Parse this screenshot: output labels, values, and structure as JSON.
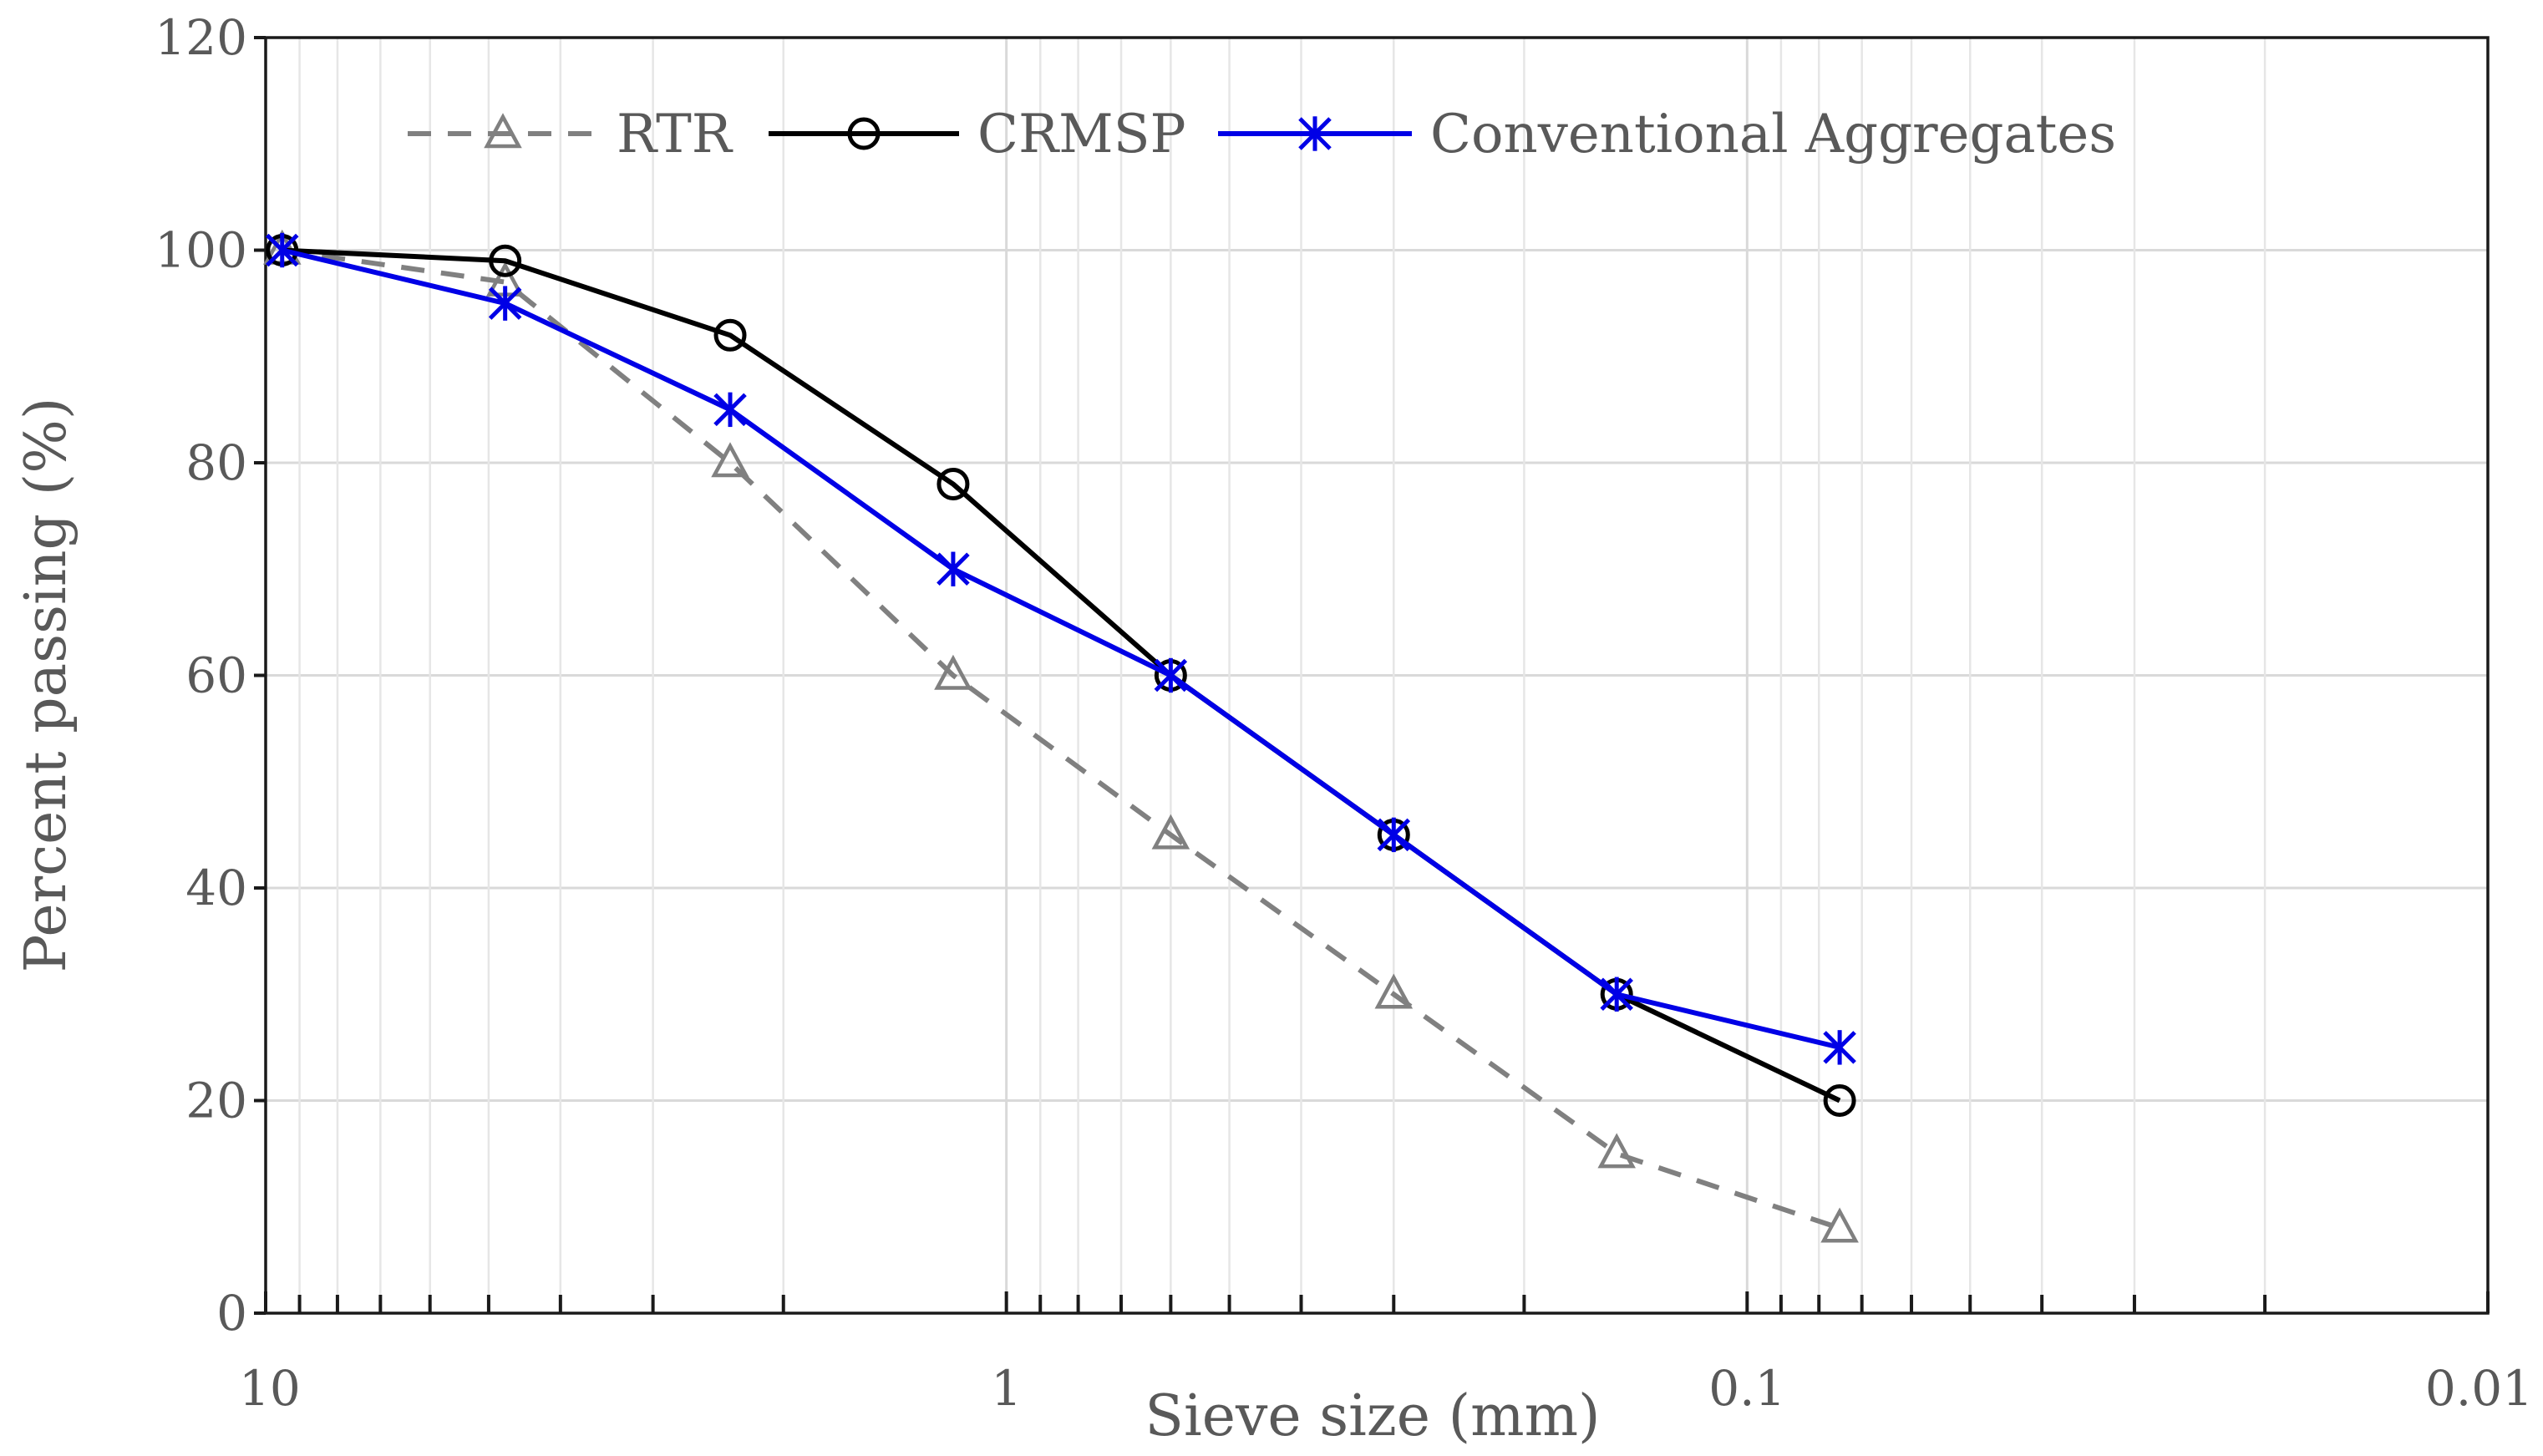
{
  "chart_data": {
    "type": "line",
    "title": "",
    "xlabel": "Sieve size (mm)",
    "ylabel": "Percent passing (%)",
    "x_scale": "log",
    "x_reversed": true,
    "xlim": [
      10,
      0.01
    ],
    "ylim": [
      0,
      120
    ],
    "x_tick_labels": [
      "10",
      "1",
      "0.1",
      "0.01"
    ],
    "y_tick_labels": [
      "0",
      "20",
      "40",
      "60",
      "80",
      "100",
      "120"
    ],
    "grid": true,
    "legend_position": "top",
    "series": [
      {
        "name": "RTR",
        "color": "#808080",
        "line_style": "dashed",
        "marker": "triangle",
        "x": [
          9.5,
          4.75,
          2.36,
          1.18,
          0.6,
          0.3,
          0.15,
          0.075
        ],
        "y": [
          100,
          97,
          80,
          60,
          45,
          30,
          15,
          8
        ]
      },
      {
        "name": "CRMSP",
        "color": "#000000",
        "line_style": "solid",
        "marker": "circle",
        "x": [
          9.5,
          4.75,
          2.36,
          1.18,
          0.6,
          0.3,
          0.15,
          0.075
        ],
        "y": [
          100,
          99,
          92,
          78,
          60,
          45,
          30,
          20
        ]
      },
      {
        "name": "Conventional Aggregates",
        "color": "#0000e6",
        "line_style": "solid",
        "marker": "asterisk",
        "x": [
          9.5,
          4.75,
          2.36,
          1.18,
          0.6,
          0.3,
          0.15,
          0.075
        ],
        "y": [
          100,
          95,
          85,
          70,
          60,
          45,
          30,
          25
        ]
      }
    ]
  }
}
